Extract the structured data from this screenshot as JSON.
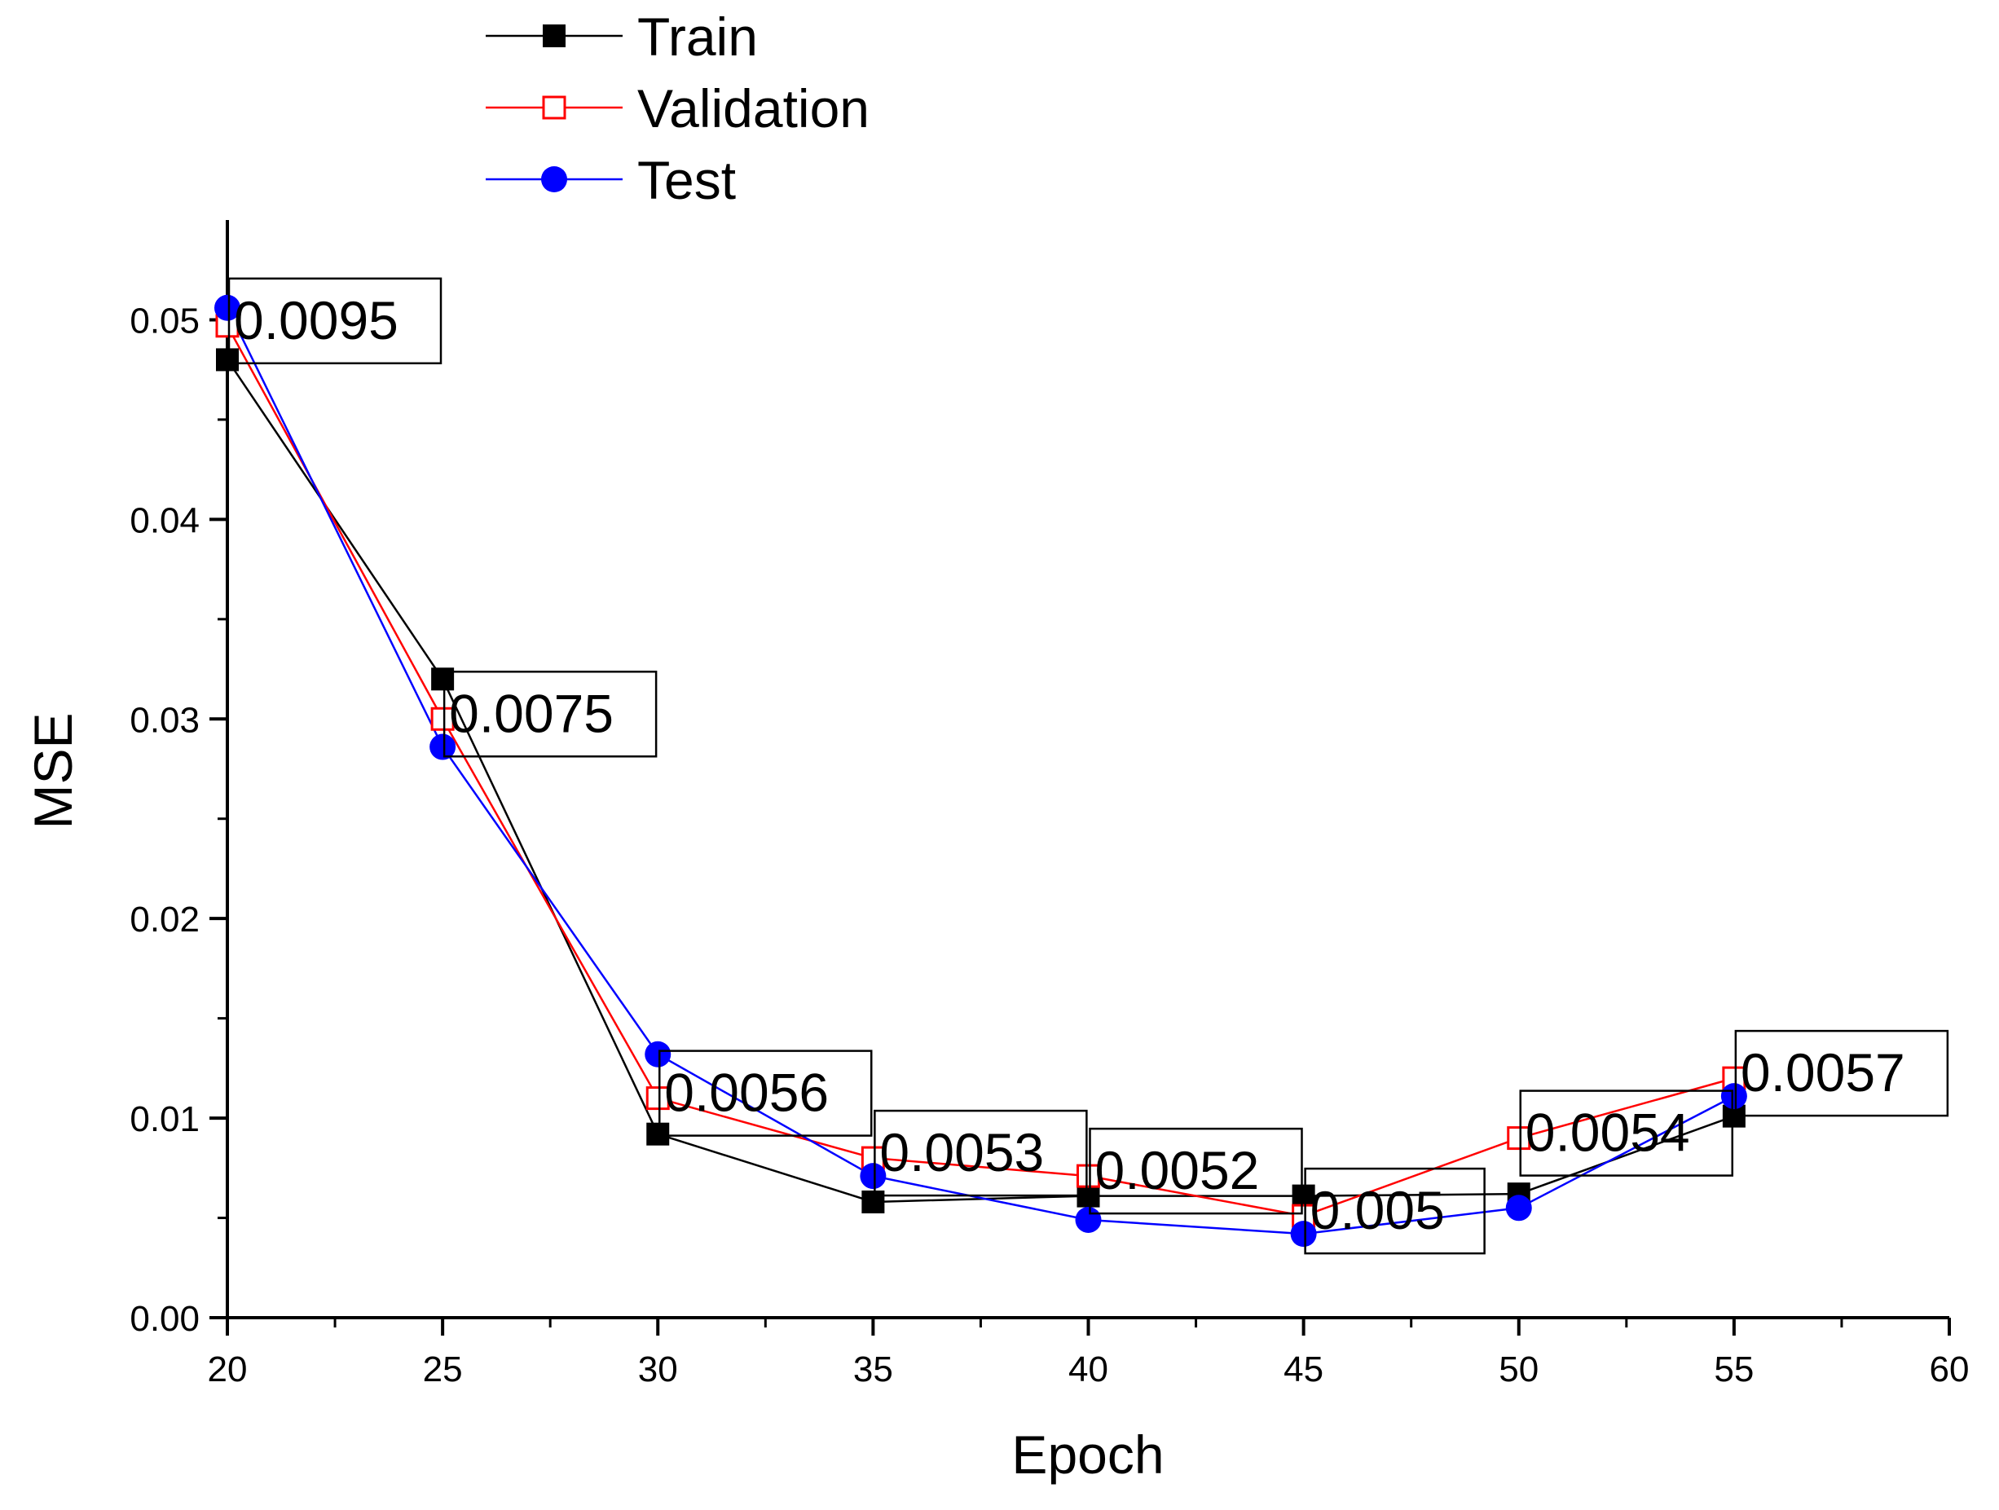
{
  "chart_data": {
    "type": "line",
    "title": "",
    "xlabel": "Epoch",
    "ylabel": "MSE",
    "xlim": [
      20,
      60
    ],
    "ylim": [
      0,
      0.055
    ],
    "x_ticks": [
      "20",
      "25",
      "30",
      "35",
      "40",
      "45",
      "50",
      "55",
      "60"
    ],
    "y_ticks": [
      "0.00",
      "0.01",
      "0.02",
      "0.03",
      "0.04",
      "0.05"
    ],
    "x": [
      20,
      25,
      30,
      35,
      40,
      45,
      50,
      55
    ],
    "grid": false,
    "legend_position": "top-left",
    "series": [
      {
        "name": "Train",
        "color": "#000000",
        "marker": "filled-square",
        "values": [
          0.048,
          0.032,
          0.0092,
          0.0058,
          0.0061,
          0.0061,
          0.0062,
          0.0101
        ]
      },
      {
        "name": "Validation",
        "color": "#ff0000",
        "marker": "open-square",
        "values": [
          0.0497,
          0.03,
          0.011,
          0.008,
          0.0071,
          0.0051,
          0.009,
          0.012
        ]
      },
      {
        "name": "Test",
        "color": "#0000ff",
        "marker": "filled-circle",
        "values": [
          0.0506,
          0.0286,
          0.0132,
          0.0071,
          0.0049,
          0.0042,
          0.0055,
          0.0111
        ]
      }
    ],
    "annotations": [
      {
        "x": 20,
        "label": "0.0095"
      },
      {
        "x": 25,
        "label": "0.0075"
      },
      {
        "x": 30,
        "label": "0.0056"
      },
      {
        "x": 35,
        "label": "0.0053"
      },
      {
        "x": 40,
        "label": "0.0052"
      },
      {
        "x": 45,
        "label": "0.005"
      },
      {
        "x": 50,
        "label": "0.0054"
      },
      {
        "x": 55,
        "label": "0.0057"
      }
    ]
  }
}
